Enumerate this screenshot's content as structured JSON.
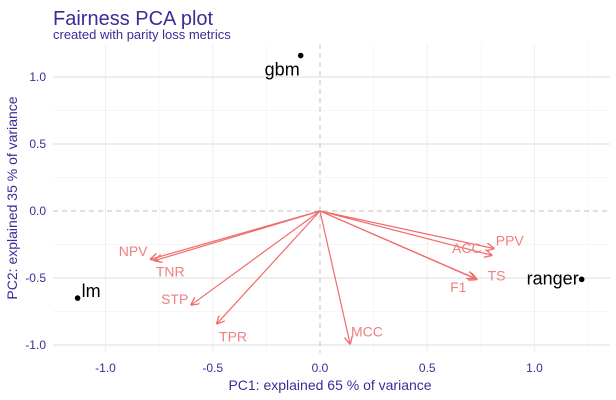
{
  "chart_data": {
    "type": "scatter",
    "title": "Fairness PCA plot",
    "subtitle": "created with parity loss metrics",
    "xlabel": "PC1: explained 65 % of variance",
    "ylabel": "PC2: explained 35 % of variance",
    "xlim": [
      -1.2,
      1.35
    ],
    "ylim": [
      -1.05,
      1.25
    ],
    "x_ticks": [
      -1.0,
      -0.5,
      0.0,
      0.5,
      1.0
    ],
    "x_tick_labels": [
      "-1.0",
      "-0.5",
      "0.0",
      "0.5",
      "1.0"
    ],
    "y_ticks": [
      -1.0,
      -0.5,
      0.0,
      0.5,
      1.0
    ],
    "y_tick_labels": [
      "-1.0",
      "-0.5",
      "0.0",
      "0.5",
      "1.0"
    ],
    "grid": true,
    "points": [
      {
        "label": "gbm",
        "x": -0.09,
        "y": 1.16
      },
      {
        "label": "lm",
        "x": -1.13,
        "y": -0.65
      },
      {
        "label": "ranger",
        "x": 1.22,
        "y": -0.51
      }
    ],
    "arrows": [
      {
        "label": "PPV",
        "x": 0.81,
        "y": -0.28
      },
      {
        "label": "ACC",
        "x": 0.8,
        "y": -0.33
      },
      {
        "label": "TS",
        "x": 0.73,
        "y": -0.51
      },
      {
        "label": "F1",
        "x": 0.72,
        "y": -0.5
      },
      {
        "label": "NPV",
        "x": -0.79,
        "y": -0.36
      },
      {
        "label": "TNR",
        "x": -0.77,
        "y": -0.37
      },
      {
        "label": "STP",
        "x": -0.6,
        "y": -0.7
      },
      {
        "label": "TPR",
        "x": -0.48,
        "y": -0.84
      },
      {
        "label": "MCC",
        "x": 0.14,
        "y": -0.99
      }
    ],
    "colors": {
      "title": "#3f2a96",
      "axis_text": "#3f2a96",
      "arrow": "#f26b6b",
      "arrow_label": "#f08080",
      "point": "#000000",
      "grid": "#dddddd",
      "zero_line": "#cccccc"
    }
  }
}
